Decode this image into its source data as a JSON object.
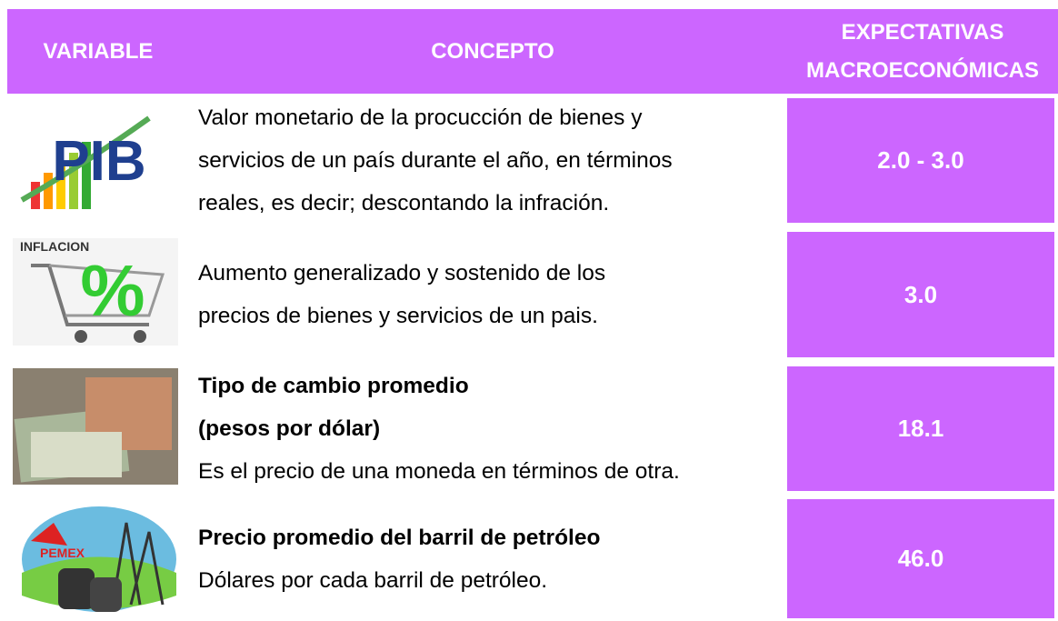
{
  "header": {
    "columns": [
      [
        "VARIABLE"
      ],
      [
        "CONCEPTO"
      ],
      [
        "EXPECTATIVAS",
        "MACROECONÓMICAS"
      ]
    ]
  },
  "rows": [
    {
      "icon_label": "PIB",
      "title_lines": [],
      "text_lines": [
        "Valor monetario de la procucción de bienes y",
        "servicios de un país durante el año, en términos",
        "reales, es decir; descontando la infración."
      ],
      "expectation": "2.0 - 3.0"
    },
    {
      "icon_label": "INFLACION",
      "title_lines": [],
      "text_lines": [
        "Aumento generalizado y sostenido de los",
        "precios de bienes y servicios de un pais."
      ],
      "expectation": "3.0"
    },
    {
      "icon_label": null,
      "title_lines": [
        "Tipo de cambio promedio",
        "(pesos por dólar)"
      ],
      "text_lines": [
        "Es el precio de una moneda en términos de otra."
      ],
      "expectation": "18.1"
    },
    {
      "icon_label": "PEMEX",
      "title_lines": [
        "Precio promedio del barril de petróleo"
      ],
      "text_lines": [
        "Dólares por cada barril de petróleo."
      ],
      "expectation": "46.0"
    }
  ]
}
